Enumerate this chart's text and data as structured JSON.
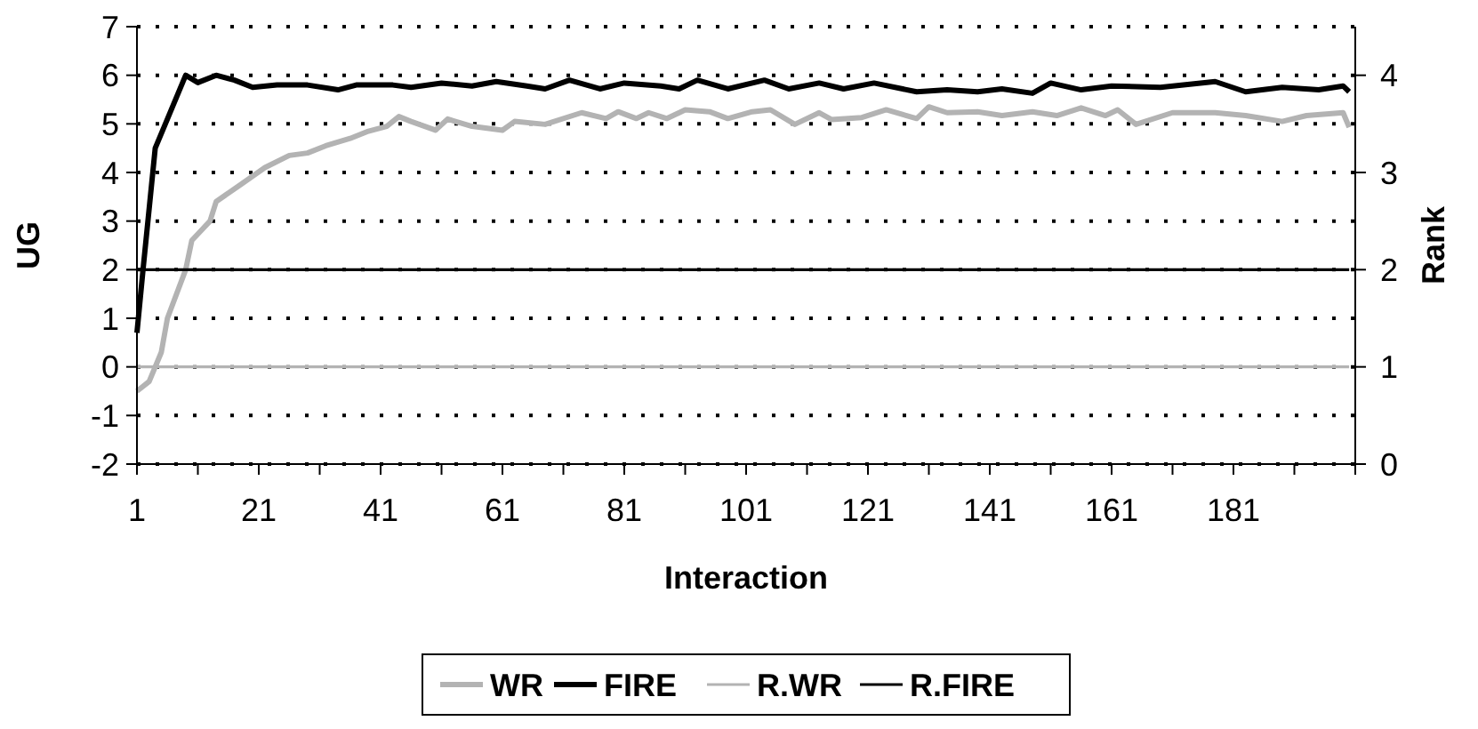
{
  "chart_data": {
    "type": "line",
    "xlabel": "Interaction",
    "ylabel": "UG",
    "y2label": "Rank",
    "xlim": [
      1,
      201
    ],
    "xticks": [
      1,
      {
        "value": 11,
        "label": null
      },
      21,
      {
        "value": 31,
        "label": null
      },
      41,
      {
        "value": 51,
        "label": null
      },
      61,
      {
        "value": 71,
        "label": null
      },
      81,
      {
        "value": 91,
        "label": null
      },
      101,
      {
        "value": 111,
        "label": null
      },
      121,
      {
        "value": 131,
        "label": null
      },
      141,
      {
        "value": 151,
        "label": null
      },
      161,
      {
        "value": 171,
        "label": null
      },
      181,
      {
        "value": 191,
        "label": null
      },
      {
        "value": 201,
        "label": null
      }
    ],
    "ylim": [
      -2,
      7
    ],
    "yticks": [
      -2,
      -1,
      0,
      1,
      2,
      3,
      4,
      5,
      6,
      7
    ],
    "y2lim": [
      0,
      4.5
    ],
    "y2ticks": [
      0,
      1,
      2,
      3,
      4
    ],
    "grid": "y",
    "legend": "bottom",
    "marker": "none",
    "line_style": "solid",
    "series": [
      {
        "name": "WR",
        "color": "#b3b3b3",
        "x": [
          1,
          3,
          5,
          6,
          9,
          10,
          13,
          14,
          18,
          22,
          26,
          29,
          32,
          36,
          39,
          42,
          44,
          46,
          50,
          52,
          56,
          61,
          63,
          68,
          74,
          78,
          80,
          83,
          85,
          88,
          91,
          95,
          98,
          102,
          105,
          109,
          113,
          115,
          120,
          124,
          129,
          131,
          134,
          139,
          143,
          148,
          152,
          156,
          160,
          162,
          165,
          171,
          178,
          183,
          189,
          193,
          199,
          200
        ],
        "values": [
          -0.5,
          -0.3,
          0.3,
          1.0,
          2.0,
          2.6,
          3.0,
          3.4,
          3.75,
          4.1,
          4.35,
          4.4,
          4.55,
          4.7,
          4.85,
          4.95,
          5.15,
          5.05,
          4.87,
          5.1,
          4.95,
          4.87,
          5.05,
          4.99,
          5.23,
          5.11,
          5.25,
          5.11,
          5.23,
          5.11,
          5.29,
          5.25,
          5.11,
          5.25,
          5.29,
          4.99,
          5.23,
          5.09,
          5.13,
          5.29,
          5.11,
          5.35,
          5.23,
          5.25,
          5.17,
          5.25,
          5.17,
          5.33,
          5.17,
          5.29,
          4.99,
          5.23,
          5.23,
          5.17,
          5.05,
          5.17,
          5.23,
          4.93
        ]
      },
      {
        "name": "FIRE",
        "color": "#000000",
        "x": [
          1,
          2,
          4,
          6,
          9,
          11,
          14,
          17,
          20,
          24,
          29,
          34,
          37,
          43,
          46,
          51,
          56,
          60,
          65,
          68,
          72,
          77,
          81,
          87,
          90,
          93,
          98,
          104,
          108,
          113,
          117,
          122,
          129,
          134,
          139,
          143,
          148,
          151,
          156,
          161,
          169,
          178,
          183,
          189,
          195,
          199,
          200
        ],
        "values": [
          0.7,
          2.0,
          4.5,
          5.1,
          6.0,
          5.85,
          6.0,
          5.9,
          5.75,
          5.8,
          5.8,
          5.7,
          5.8,
          5.8,
          5.75,
          5.84,
          5.78,
          5.87,
          5.78,
          5.72,
          5.9,
          5.72,
          5.84,
          5.78,
          5.72,
          5.9,
          5.72,
          5.9,
          5.72,
          5.84,
          5.72,
          5.84,
          5.66,
          5.7,
          5.66,
          5.72,
          5.63,
          5.84,
          5.7,
          5.78,
          5.75,
          5.87,
          5.66,
          5.75,
          5.7,
          5.78,
          5.66
        ]
      },
      {
        "name": "R.WR",
        "color": "#b3b3b3",
        "axis": "y2",
        "x": [
          1,
          200
        ],
        "values": [
          1,
          1
        ]
      },
      {
        "name": "R.FIRE",
        "color": "#000000",
        "axis": "y2",
        "x": [
          1,
          200
        ],
        "values": [
          2,
          2
        ]
      }
    ]
  }
}
